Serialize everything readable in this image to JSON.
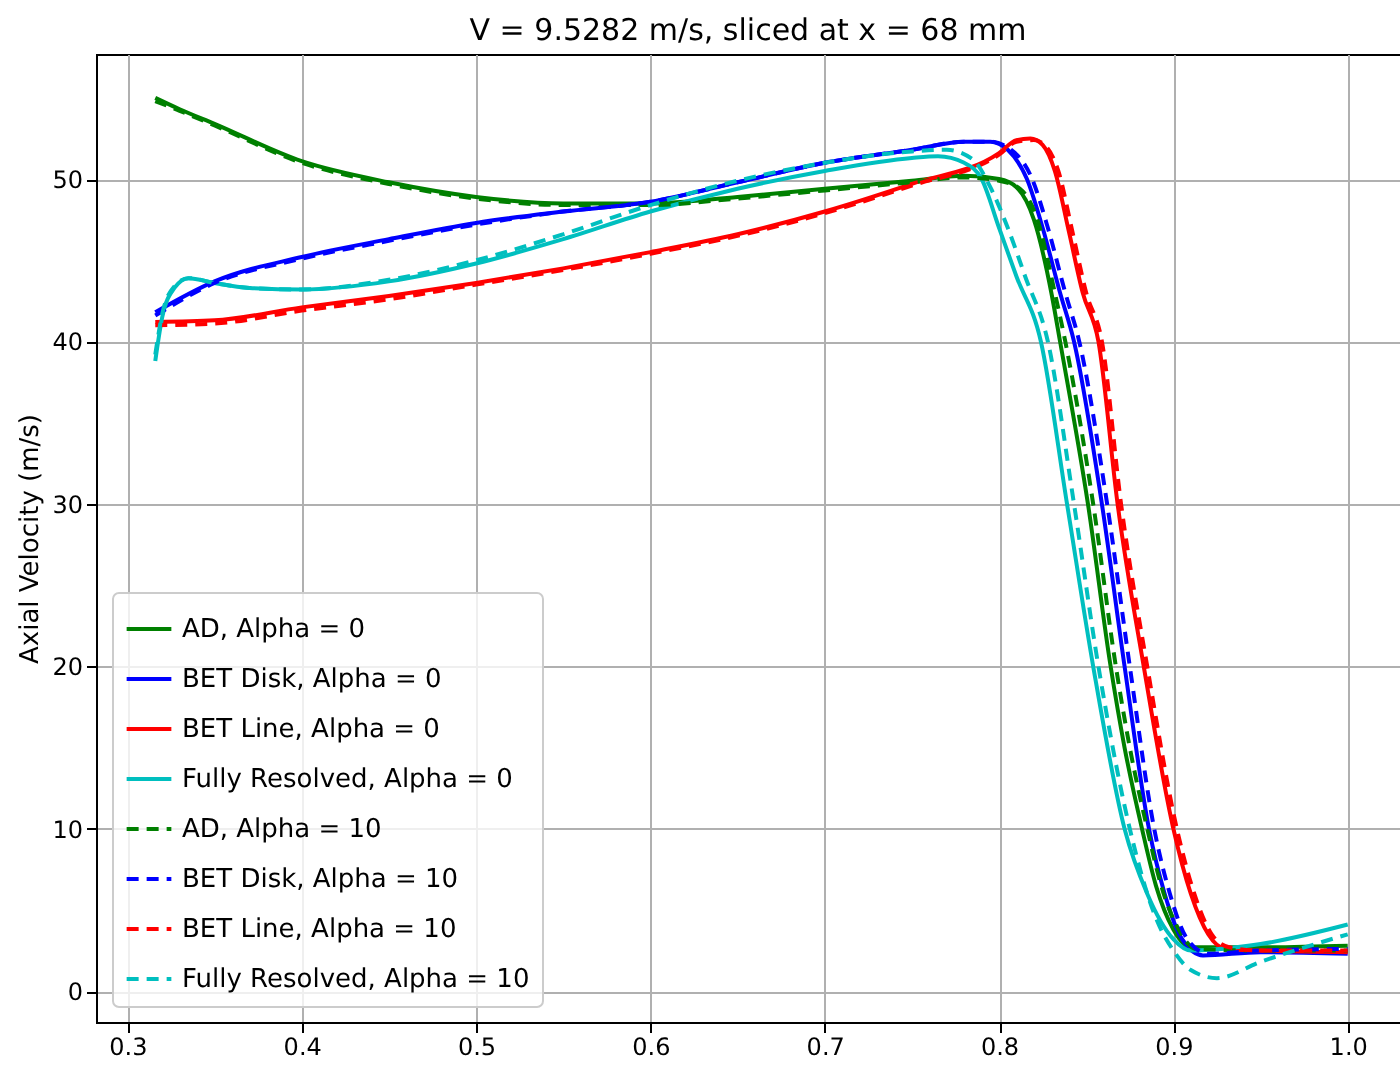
{
  "chart_data": {
    "type": "line",
    "title": "V = 9.5282 m/s, sliced at x = 68 mm",
    "ylabel": "Axial Velocity (m/s)",
    "xlim": [
      0.282,
      1.03
    ],
    "ylim": [
      -1.9,
      57.7
    ],
    "xticks": [
      {
        "value": 0.3,
        "label": "0.3"
      },
      {
        "value": 0.4,
        "label": "0.4"
      },
      {
        "value": 0.5,
        "label": "0.5"
      },
      {
        "value": 0.6,
        "label": "0.6"
      },
      {
        "value": 0.7,
        "label": "0.7"
      },
      {
        "value": 0.8,
        "label": "0.8"
      },
      {
        "value": 0.9,
        "label": "0.9"
      },
      {
        "value": 1.0,
        "label": "1.0"
      }
    ],
    "yticks": [
      0,
      10,
      20,
      30,
      40,
      50
    ],
    "grid": true,
    "legend": "bottom left",
    "marker": "none",
    "series": [
      {
        "name": "AD, Alpha = 0",
        "color": "#008000",
        "line_style": "solid",
        "x": [
          0.316,
          0.33,
          0.35,
          0.4,
          0.45,
          0.5,
          0.55,
          0.6,
          0.65,
          0.7,
          0.75,
          0.78,
          0.8,
          0.81,
          0.82,
          0.83,
          0.835,
          0.851,
          0.864,
          0.872,
          0.882,
          0.89,
          0.9,
          0.91,
          0.95,
          1.0
        ],
        "values": [
          55.0,
          54.3,
          53.4,
          51.1,
          49.8,
          48.9,
          48.5,
          48.5,
          48.9,
          49.4,
          49.9,
          50.2,
          50.0,
          49.5,
          47.5,
          43,
          40,
          30,
          20,
          15,
          10,
          6.5,
          3.8,
          2.7,
          2.7,
          2.8
        ]
      },
      {
        "name": "BET Disk, Alpha = 0",
        "color": "#0000ff",
        "line_style": "solid",
        "x": [
          0.316,
          0.35,
          0.4,
          0.45,
          0.5,
          0.55,
          0.6,
          0.65,
          0.7,
          0.75,
          0.78,
          0.795,
          0.805,
          0.816,
          0.825,
          0.835,
          0.843,
          0.859,
          0.872,
          0.886,
          0.895,
          0.905,
          0.917,
          0.95,
          1.0
        ],
        "values": [
          41.8,
          43.7,
          45.2,
          46.3,
          47.3,
          48.0,
          48.6,
          49.8,
          51.0,
          51.8,
          52.3,
          52.3,
          51.8,
          50,
          47,
          43,
          40,
          30,
          20,
          10,
          6,
          3.2,
          2.2,
          2.4,
          2.3
        ]
      },
      {
        "name": "BET Line, Alpha = 0",
        "color": "#ff0000",
        "line_style": "solid",
        "x": [
          0.316,
          0.35,
          0.4,
          0.45,
          0.5,
          0.55,
          0.6,
          0.65,
          0.7,
          0.75,
          0.8,
          0.81,
          0.818,
          0.825,
          0.832,
          0.84,
          0.848,
          0.857,
          0.868,
          0.883,
          0.9,
          0.91,
          0.92,
          0.93,
          0.95,
          1.0
        ],
        "values": [
          41.2,
          41.3,
          42.1,
          42.8,
          43.6,
          44.5,
          45.5,
          46.6,
          48.0,
          49.7,
          51.6,
          52.4,
          52.5,
          52.1,
          50.5,
          46.8,
          43,
          40,
          30,
          20,
          10,
          6,
          3.5,
          2.6,
          2.5,
          2.4
        ]
      },
      {
        "name": "Fully Resolved, Alpha = 0",
        "color": "#00bfbf",
        "line_style": "solid",
        "x": [
          0.316,
          0.32,
          0.327,
          0.335,
          0.35,
          0.37,
          0.4,
          0.45,
          0.5,
          0.55,
          0.6,
          0.65,
          0.7,
          0.75,
          0.765,
          0.78,
          0.79,
          0.8,
          0.81,
          0.824,
          0.839,
          0.854,
          0.872,
          0.885,
          0.9,
          0.91,
          0.95,
          1.0
        ],
        "values": [
          38.8,
          41.5,
          43.3,
          43.9,
          43.6,
          43.3,
          43.2,
          43.7,
          44.8,
          46.3,
          48.0,
          49.4,
          50.5,
          51.3,
          51.4,
          51.0,
          50.0,
          47.0,
          44,
          40,
          30,
          20,
          10,
          6,
          3.2,
          2.5,
          2.9,
          4.1
        ]
      },
      {
        "name": "AD, Alpha = 10",
        "color": "#008000",
        "line_style": "dashed",
        "x": [
          0.316,
          0.33,
          0.35,
          0.4,
          0.45,
          0.5,
          0.55,
          0.6,
          0.65,
          0.7,
          0.75,
          0.78,
          0.8,
          0.812,
          0.822,
          0.832,
          0.838,
          0.854,
          0.867,
          0.875,
          0.885,
          0.893,
          0.903,
          0.913,
          0.95,
          1.0
        ],
        "values": [
          54.8,
          54.2,
          53.3,
          51.0,
          49.7,
          48.8,
          48.4,
          48.4,
          48.8,
          49.3,
          49.8,
          50.1,
          49.9,
          49.4,
          47.5,
          43,
          40,
          30,
          20,
          15,
          10,
          6.5,
          3.8,
          2.6,
          2.5,
          2.5
        ]
      },
      {
        "name": "BET Disk, Alpha = 10",
        "color": "#0000ff",
        "line_style": "dashed",
        "x": [
          0.316,
          0.35,
          0.4,
          0.45,
          0.5,
          0.55,
          0.6,
          0.65,
          0.7,
          0.75,
          0.78,
          0.795,
          0.807,
          0.819,
          0.828,
          0.838,
          0.846,
          0.862,
          0.875,
          0.889,
          0.898,
          0.908,
          0.92,
          0.95,
          1.0
        ],
        "values": [
          41.6,
          43.6,
          45.1,
          46.2,
          47.2,
          48.0,
          48.6,
          49.8,
          51.0,
          51.8,
          52.3,
          52.3,
          51.8,
          50,
          47,
          43,
          40,
          30,
          20,
          10,
          6,
          3.2,
          2.3,
          2.5,
          2.6
        ]
      },
      {
        "name": "BET Line, Alpha = 10",
        "color": "#ff0000",
        "line_style": "dashed",
        "x": [
          0.316,
          0.35,
          0.4,
          0.45,
          0.5,
          0.55,
          0.6,
          0.65,
          0.7,
          0.75,
          0.8,
          0.81,
          0.82,
          0.827,
          0.834,
          0.842,
          0.85,
          0.859,
          0.87,
          0.885,
          0.902,
          0.912,
          0.922,
          0.932,
          0.95,
          1.0
        ],
        "values": [
          41.0,
          41.1,
          41.9,
          42.6,
          43.5,
          44.4,
          45.4,
          46.5,
          47.9,
          49.6,
          51.5,
          52.3,
          52.4,
          52.0,
          50.5,
          46.8,
          43,
          40,
          30,
          20,
          10,
          6,
          3.5,
          2.7,
          2.5,
          2.5
        ]
      },
      {
        "name": "Fully Resolved, Alpha = 10",
        "color": "#00bfbf",
        "line_style": "dashed",
        "x": [
          0.316,
          0.32,
          0.327,
          0.335,
          0.35,
          0.37,
          0.4,
          0.45,
          0.5,
          0.55,
          0.6,
          0.65,
          0.7,
          0.75,
          0.77,
          0.785,
          0.795,
          0.805,
          0.815,
          0.828,
          0.843,
          0.857,
          0.875,
          0.89,
          0.9,
          0.91,
          0.925,
          0.95,
          1.0
        ],
        "values": [
          39.2,
          41.7,
          43.4,
          43.9,
          43.6,
          43.3,
          43.2,
          43.8,
          45.0,
          46.6,
          48.4,
          49.9,
          51.0,
          51.7,
          51.8,
          51.2,
          49.5,
          47,
          44,
          40,
          30,
          20,
          10,
          4.5,
          2.5,
          1.3,
          0.8,
          1.8,
          3.5
        ]
      }
    ]
  }
}
